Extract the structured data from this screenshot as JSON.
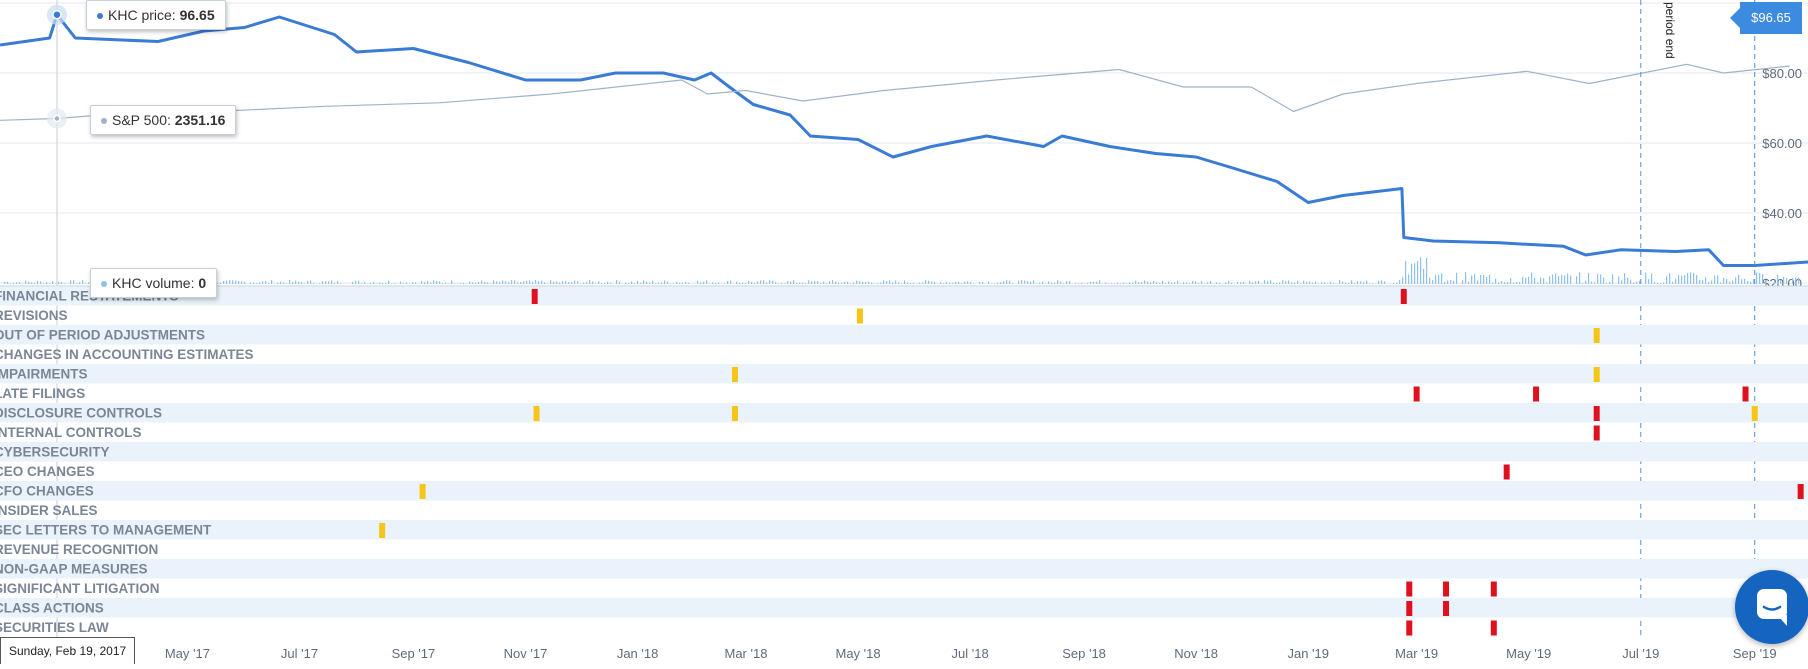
{
  "colors": {
    "price": "#3a7bd5",
    "sp500": "#9fb3c8",
    "volume": "#8ec1ee",
    "band": "#eaf3fb",
    "red": "#e0101e",
    "yellow": "#f5c518",
    "grid": "#e3e7ec",
    "badge": "#3d8be0"
  },
  "tooltips": {
    "price_label": "KHC price:",
    "price_value": "96.65",
    "sp_label": "S&P 500:",
    "sp_value": "2351.16",
    "volume_label": "KHC volume:",
    "volume_value": "0",
    "date": "Sunday, Feb 19, 2017"
  },
  "current_price_badge": "$96.65",
  "period_end_label": "period end",
  "chart_data": {
    "type": "line",
    "x_ticks": [
      "May '17",
      "Jul '17",
      "Sep '17",
      "Nov '17",
      "Jan '18",
      "Mar '18",
      "May '18",
      "Jul '18",
      "Sep '18",
      "Nov '18",
      "Jan '19",
      "Mar '19",
      "May '19",
      "Jul '19",
      "Sep '19"
    ],
    "y_ticks": [
      "$20.00",
      "$40.00",
      "$60.00",
      "$80.00"
    ],
    "ylim": [
      20,
      100
    ],
    "xlim": [
      "2017-01-19",
      "2019-09-30"
    ],
    "series": [
      {
        "name": "KHC price",
        "points": [
          [
            "2017-01-19",
            88
          ],
          [
            "2017-02-15",
            90
          ],
          [
            "2017-02-19",
            96.65
          ],
          [
            "2017-03-01",
            90
          ],
          [
            "2017-04-15",
            89
          ],
          [
            "2017-05-10",
            92
          ],
          [
            "2017-06-01",
            93
          ],
          [
            "2017-06-20",
            96
          ],
          [
            "2017-07-20",
            91
          ],
          [
            "2017-08-01",
            86
          ],
          [
            "2017-09-01",
            87
          ],
          [
            "2017-10-01",
            83
          ],
          [
            "2017-11-01",
            78
          ],
          [
            "2017-12-01",
            78
          ],
          [
            "2017-12-20",
            80
          ],
          [
            "2018-01-15",
            80
          ],
          [
            "2018-02-01",
            78
          ],
          [
            "2018-02-10",
            80
          ],
          [
            "2018-02-20",
            76
          ],
          [
            "2018-03-05",
            71
          ],
          [
            "2018-03-25",
            68
          ],
          [
            "2018-04-05",
            62
          ],
          [
            "2018-05-01",
            61
          ],
          [
            "2018-05-20",
            56
          ],
          [
            "2018-06-10",
            59
          ],
          [
            "2018-07-10",
            62
          ],
          [
            "2018-08-10",
            59
          ],
          [
            "2018-08-20",
            62
          ],
          [
            "2018-09-15",
            59
          ],
          [
            "2018-10-10",
            57
          ],
          [
            "2018-11-01",
            56
          ],
          [
            "2018-11-20",
            53
          ],
          [
            "2018-12-15",
            49
          ],
          [
            "2019-01-01",
            43
          ],
          [
            "2019-01-20",
            45
          ],
          [
            "2019-02-21",
            47
          ],
          [
            "2019-02-22",
            33
          ],
          [
            "2019-03-10",
            32
          ],
          [
            "2019-04-15",
            31.5
          ],
          [
            "2019-05-20",
            30.5
          ],
          [
            "2019-06-01",
            28
          ],
          [
            "2019-06-20",
            29.5
          ],
          [
            "2019-07-20",
            29
          ],
          [
            "2019-08-07",
            29.5
          ],
          [
            "2019-08-15",
            25
          ],
          [
            "2019-09-01",
            25
          ],
          [
            "2019-09-30",
            26
          ]
        ]
      },
      {
        "name": "S&P 500",
        "points": [
          [
            "2017-01-19",
            66.5
          ],
          [
            "2017-02-19",
            67
          ],
          [
            "2017-03-15",
            68
          ],
          [
            "2017-05-15",
            69
          ],
          [
            "2017-07-15",
            70.5
          ],
          [
            "2017-09-15",
            71.5
          ],
          [
            "2017-11-15",
            74
          ],
          [
            "2018-01-25",
            78
          ],
          [
            "2018-02-08",
            74
          ],
          [
            "2018-03-01",
            75
          ],
          [
            "2018-04-01",
            72
          ],
          [
            "2018-05-15",
            75
          ],
          [
            "2018-07-15",
            78
          ],
          [
            "2018-09-20",
            81
          ],
          [
            "2018-10-25",
            76
          ],
          [
            "2018-12-01",
            76
          ],
          [
            "2018-12-24",
            69
          ],
          [
            "2019-01-20",
            74
          ],
          [
            "2019-03-01",
            77
          ],
          [
            "2019-04-30",
            80.5
          ],
          [
            "2019-06-03",
            77
          ],
          [
            "2019-07-26",
            82.5
          ],
          [
            "2019-08-15",
            80
          ],
          [
            "2019-09-20",
            82
          ]
        ]
      }
    ],
    "categories": [
      "FINANCIAL RESTATEMENTS",
      "REVISIONS",
      "OUT OF PERIOD ADJUSTMENTS",
      "CHANGES IN ACCOUNTING ESTIMATES",
      "IMPAIRMENTS",
      "LATE FILINGS",
      "DISCLOSURE CONTROLS",
      "INTERNAL CONTROLS",
      "CYBERSECURITY",
      "CEO CHANGES",
      "CFO CHANGES",
      "INSIDER SALES",
      "SEC LETTERS TO MANAGEMENT",
      "REVENUE RECOGNITION",
      "NON-GAAP MEASURES",
      "SIGNIFICANT LITIGATION",
      "CLASS ACTIONS",
      "SECURITIES LAW"
    ],
    "events": [
      {
        "category": 0,
        "date": "2017-11-06",
        "color": "red"
      },
      {
        "category": 0,
        "date": "2019-02-22",
        "color": "red"
      },
      {
        "category": 1,
        "date": "2018-05-02",
        "color": "yellow"
      },
      {
        "category": 2,
        "date": "2019-06-07",
        "color": "yellow"
      },
      {
        "category": 4,
        "date": "2018-02-23",
        "color": "yellow"
      },
      {
        "category": 4,
        "date": "2019-06-07",
        "color": "yellow"
      },
      {
        "category": 5,
        "date": "2019-03-01",
        "color": "red"
      },
      {
        "category": 5,
        "date": "2019-05-05",
        "color": "red"
      },
      {
        "category": 5,
        "date": "2019-08-27",
        "color": "red"
      },
      {
        "category": 6,
        "date": "2017-11-07",
        "color": "yellow"
      },
      {
        "category": 6,
        "date": "2018-02-23",
        "color": "yellow"
      },
      {
        "category": 6,
        "date": "2019-06-07",
        "color": "red"
      },
      {
        "category": 6,
        "date": "2019-09-01",
        "color": "yellow"
      },
      {
        "category": 7,
        "date": "2019-06-07",
        "color": "red"
      },
      {
        "category": 9,
        "date": "2019-04-19",
        "color": "red"
      },
      {
        "category": 10,
        "date": "2017-09-06",
        "color": "yellow"
      },
      {
        "category": 10,
        "date": "2019-09-26",
        "color": "red"
      },
      {
        "category": 12,
        "date": "2017-08-15",
        "color": "yellow"
      },
      {
        "category": 15,
        "date": "2019-02-25",
        "color": "red"
      },
      {
        "category": 15,
        "date": "2019-03-17",
        "color": "red"
      },
      {
        "category": 15,
        "date": "2019-04-12",
        "color": "red"
      },
      {
        "category": 16,
        "date": "2019-02-25",
        "color": "red"
      },
      {
        "category": 16,
        "date": "2019-03-17",
        "color": "red"
      },
      {
        "category": 17,
        "date": "2019-02-25",
        "color": "red"
      },
      {
        "category": 17,
        "date": "2019-04-12",
        "color": "red"
      }
    ]
  }
}
